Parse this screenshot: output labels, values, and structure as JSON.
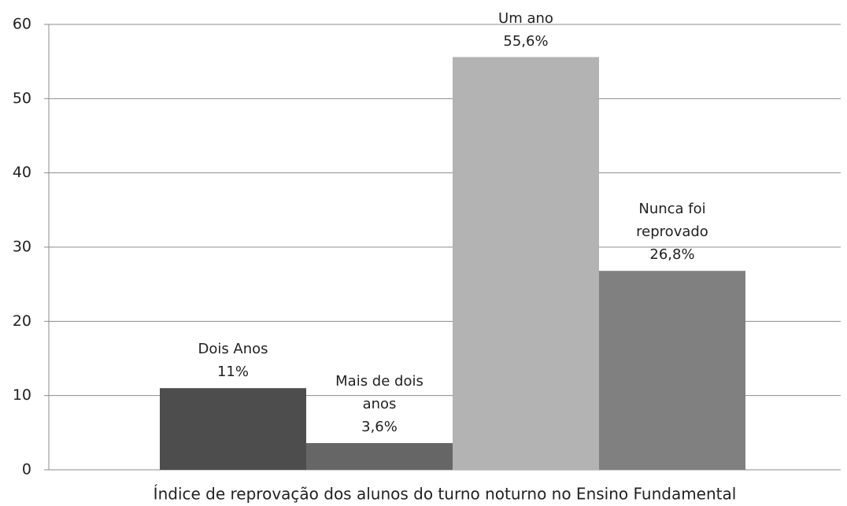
{
  "chart_data": {
    "type": "bar",
    "categories": [
      "Índice de reprovação dos alunos do turno noturno no Ensino Fundamental"
    ],
    "series": [
      {
        "name": "Dois Anos",
        "color": "#4d4d4d",
        "values": [
          11
        ],
        "value_labels": [
          "11%"
        ]
      },
      {
        "name": "Mais de dois anos",
        "color": "#666666",
        "values": [
          3.6
        ],
        "value_labels": [
          "3,6%"
        ]
      },
      {
        "name": "Um ano",
        "color": "#b3b3b3",
        "values": [
          55.6
        ],
        "value_labels": [
          "55,6%"
        ]
      },
      {
        "name": "Nunca foi reprovado",
        "color": "#808080",
        "values": [
          26.8
        ],
        "value_labels": [
          "26,8%"
        ]
      }
    ],
    "ylim": [
      0,
      60
    ],
    "yticks": [
      0,
      10,
      20,
      30,
      40,
      50,
      60
    ],
    "grid": true
  }
}
